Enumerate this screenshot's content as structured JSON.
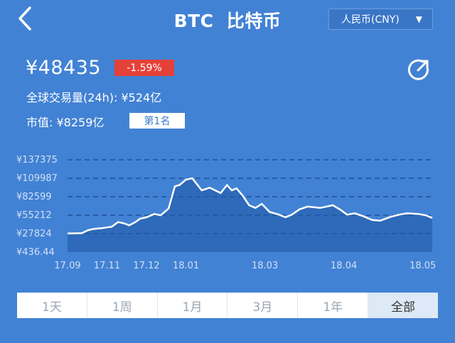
{
  "header": {
    "title": "BTC  比特币",
    "currency": "人民币(CNY)",
    "back_icon": "chevron-left-icon",
    "dropdown_icon": "triangle-down-icon"
  },
  "summary": {
    "price": "¥48435",
    "change": "-1.59%",
    "volume_label": "全球交易量(24h): ",
    "volume_value": "¥524亿",
    "marketcap_label": "市值: ",
    "marketcap_value": "¥8259亿",
    "rank": "第1名",
    "share_icon": "share-icon",
    "change_color": "#e54139"
  },
  "chart_data": {
    "type": "area",
    "yticks": [
      "¥137375",
      "¥109987",
      "¥82599",
      "¥55212",
      "¥27824",
      "¥436.44"
    ],
    "ytick_values": [
      137375,
      109987,
      82599,
      55212,
      27824,
      436.44
    ],
    "xticks": [
      "17.09",
      "17.11",
      "17.12",
      "18.01",
      "18.03",
      "18.04",
      "18.05"
    ],
    "xtick_positions": [
      0,
      0.25,
      0.5,
      0.75,
      1.25,
      1.75,
      2.25
    ],
    "ylim": [
      436.44,
      137375
    ],
    "grid": true,
    "series": [
      {
        "x": [
          0,
          0.09,
          0.13,
          0.17,
          0.22,
          0.28,
          0.32,
          0.36,
          0.39,
          0.43,
          0.46,
          0.5,
          0.55,
          0.59,
          0.64,
          0.68,
          0.71,
          0.75,
          0.79,
          0.85,
          0.9,
          0.97,
          1.01,
          1.04,
          1.07,
          1.11,
          1.15,
          1.19,
          1.23,
          1.28,
          1.34,
          1.38,
          1.42,
          1.47,
          1.52,
          1.6,
          1.68,
          1.73,
          1.77,
          1.82,
          1.87,
          1.93,
          1.98,
          2.05,
          2.1,
          2.15,
          2.22,
          2.27,
          2.31
        ],
        "values": [
          28000,
          28500,
          33000,
          35000,
          36000,
          38000,
          45000,
          43000,
          40000,
          45000,
          50000,
          52000,
          57000,
          55000,
          65000,
          98000,
          100000,
          108000,
          110000,
          92000,
          96000,
          88000,
          100000,
          92000,
          95000,
          84000,
          70000,
          66000,
          72000,
          60000,
          56000,
          52000,
          56000,
          64000,
          68000,
          66000,
          70000,
          63000,
          56000,
          58000,
          54000,
          48000,
          47000,
          53000,
          56000,
          58000,
          57000,
          55000,
          51000
        ]
      }
    ]
  },
  "tabs": [
    {
      "label": "1天",
      "active": false
    },
    {
      "label": "1周",
      "active": false
    },
    {
      "label": "1月",
      "active": false
    },
    {
      "label": "3月",
      "active": false
    },
    {
      "label": "1年",
      "active": false
    },
    {
      "label": "全部",
      "active": true
    }
  ]
}
